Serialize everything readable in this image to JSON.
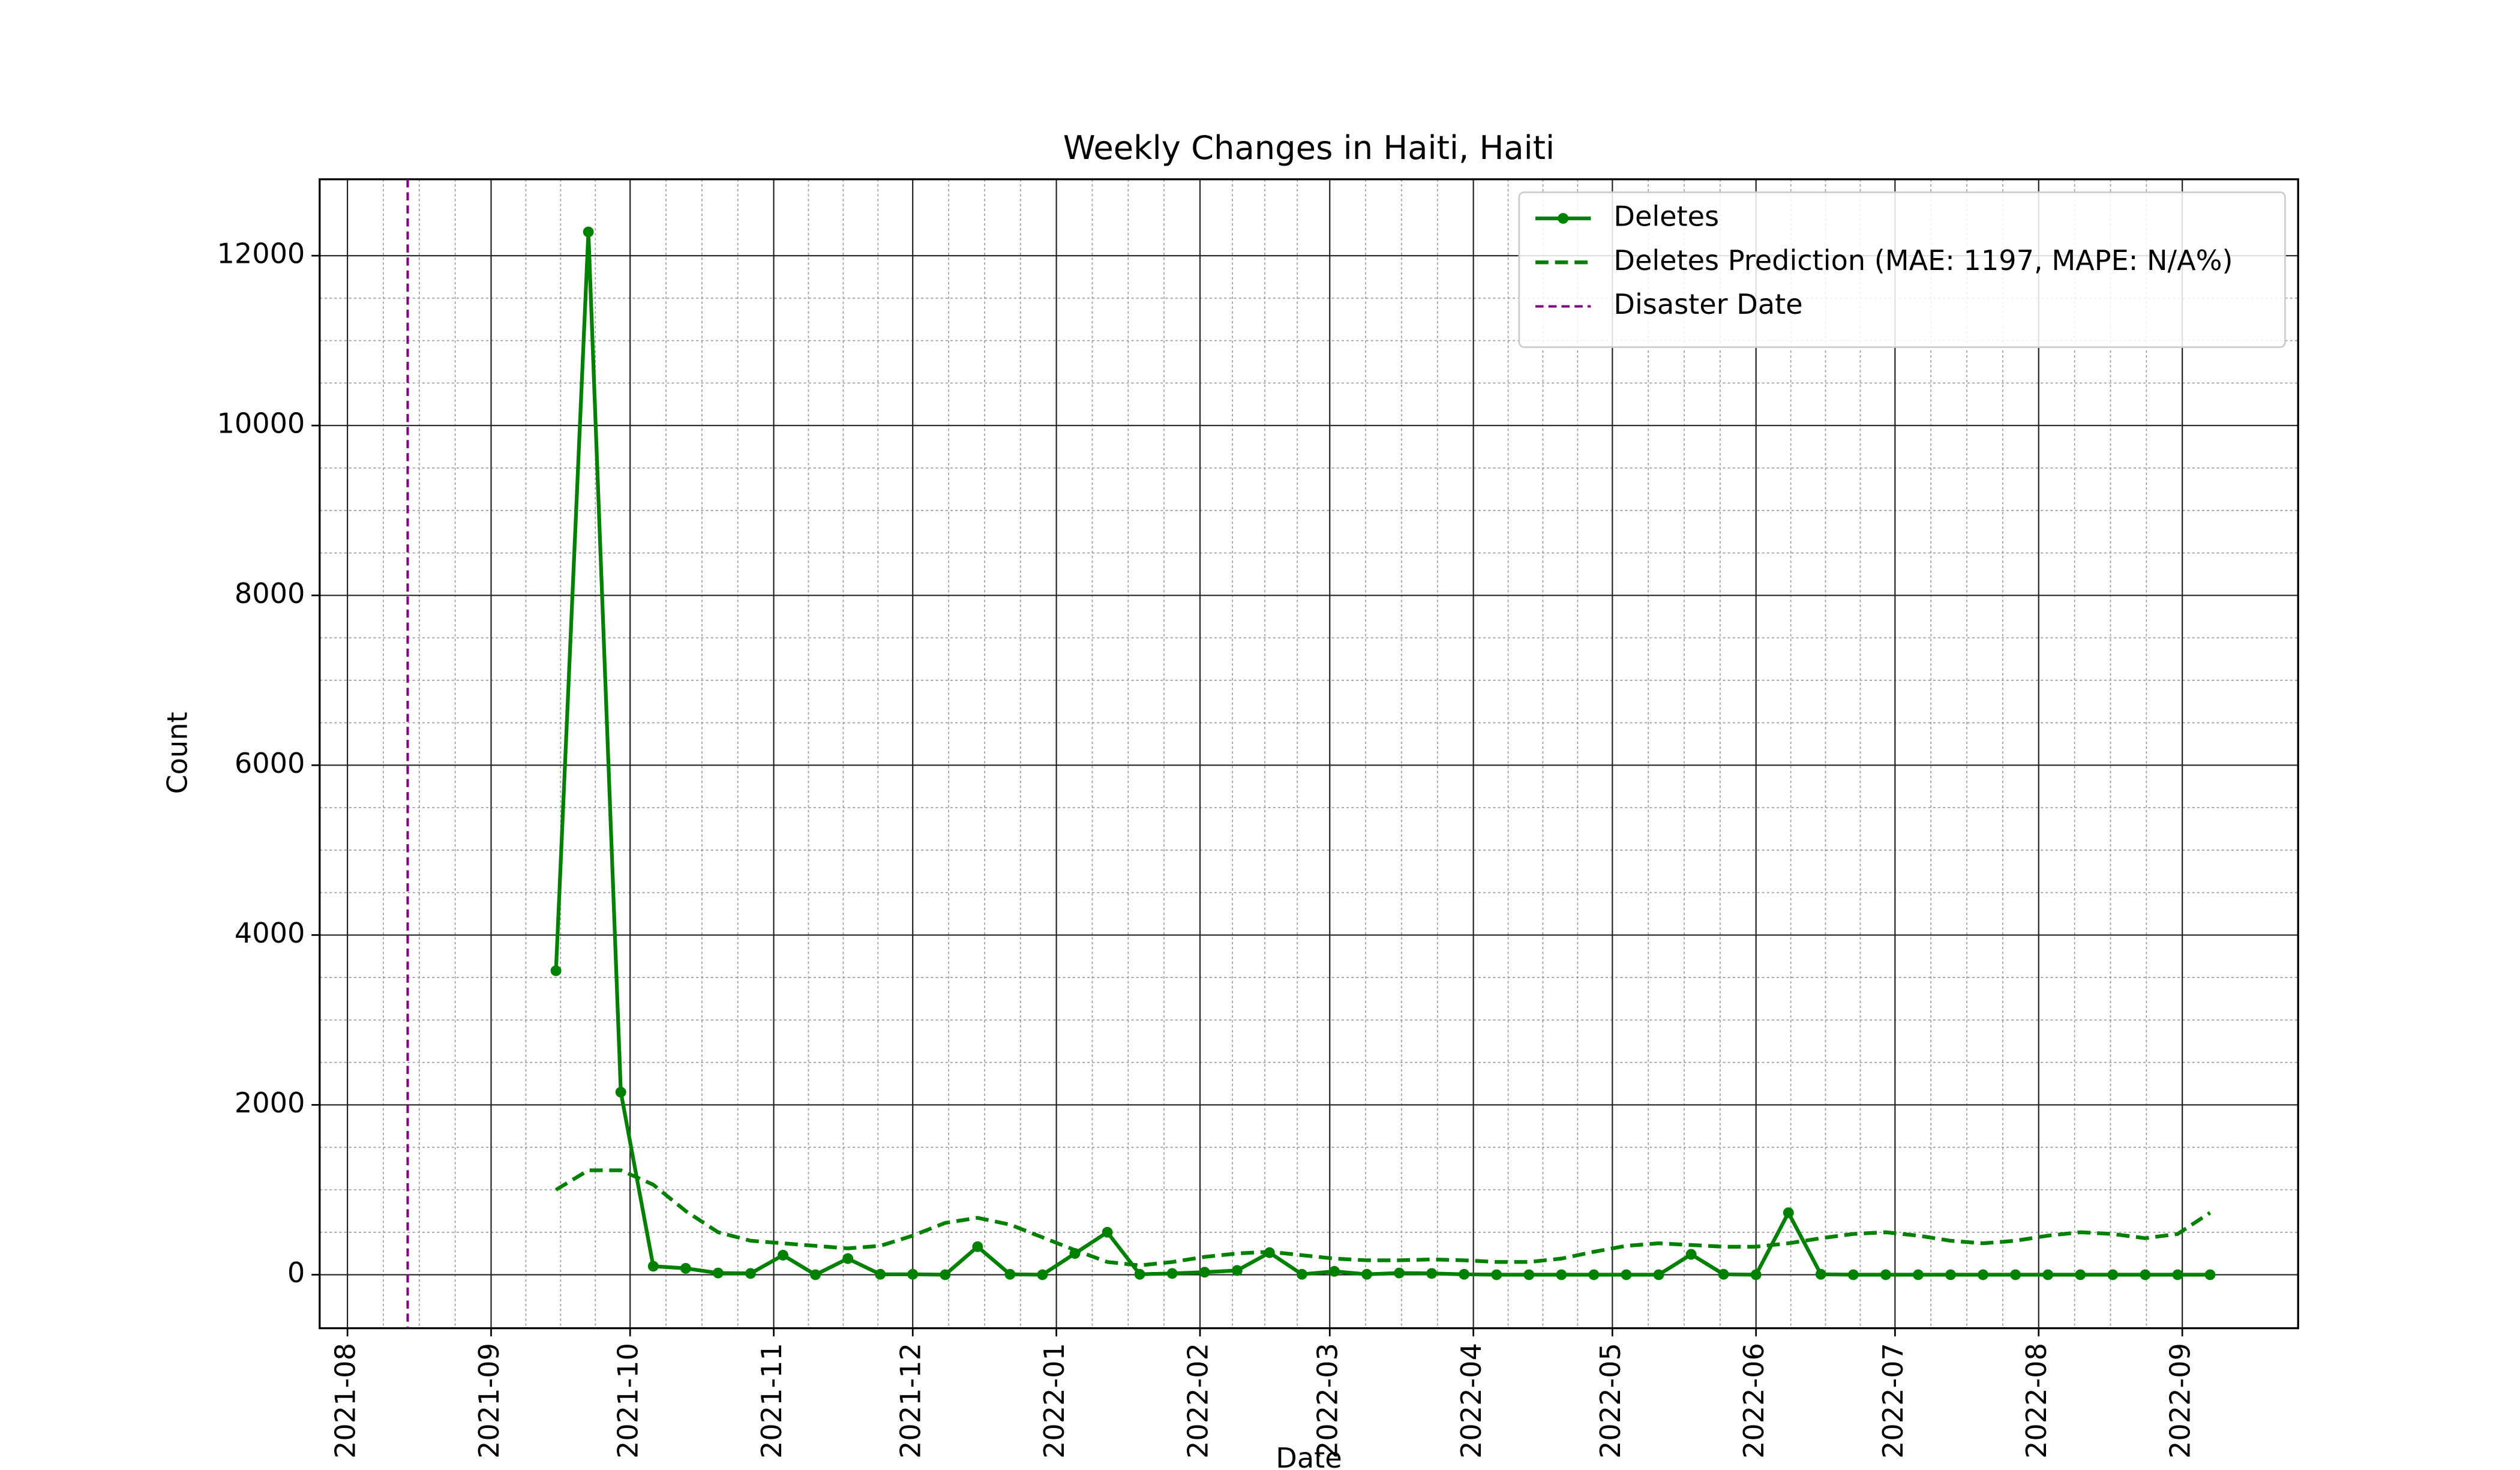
{
  "chart_data": {
    "type": "line",
    "title": "Weekly Changes in Haiti, Haiti",
    "xlabel": "Date",
    "ylabel": "Count",
    "x": [
      "2021-09-15",
      "2021-09-22",
      "2021-09-29",
      "2021-10-06",
      "2021-10-13",
      "2021-10-20",
      "2021-10-27",
      "2021-11-03",
      "2021-11-10",
      "2021-11-17",
      "2021-11-24",
      "2021-12-01",
      "2021-12-08",
      "2021-12-15",
      "2021-12-22",
      "2021-12-29",
      "2022-01-05",
      "2022-01-12",
      "2022-01-19",
      "2022-01-26",
      "2022-02-02",
      "2022-02-09",
      "2022-02-16",
      "2022-02-23",
      "2022-03-02",
      "2022-03-09",
      "2022-03-16",
      "2022-03-23",
      "2022-03-30",
      "2022-04-06",
      "2022-04-13",
      "2022-04-20",
      "2022-04-27",
      "2022-05-04",
      "2022-05-11",
      "2022-05-18",
      "2022-05-25",
      "2022-06-01",
      "2022-06-08",
      "2022-06-15",
      "2022-06-22",
      "2022-06-29",
      "2022-07-06",
      "2022-07-13",
      "2022-07-20",
      "2022-07-27",
      "2022-08-03",
      "2022-08-10",
      "2022-08-17",
      "2022-08-24",
      "2022-08-31",
      "2022-09-07"
    ],
    "series": [
      {
        "name": "Deletes",
        "color": "#008000",
        "style": "solid-marker",
        "values": [
          3580,
          12280,
          2150,
          100,
          75,
          20,
          15,
          230,
          0,
          190,
          5,
          5,
          0,
          330,
          5,
          0,
          250,
          500,
          5,
          15,
          30,
          50,
          260,
          5,
          40,
          5,
          20,
          15,
          5,
          0,
          0,
          0,
          0,
          0,
          0,
          240,
          5,
          0,
          730,
          5,
          0,
          0,
          0,
          0,
          0,
          0,
          0,
          0,
          0,
          0,
          0,
          0
        ]
      },
      {
        "name": "Deletes Prediction (MAE: 1197, MAPE: N/A%)",
        "color": "#008000",
        "style": "dashed",
        "values": [
          1000,
          1230,
          1230,
          1060,
          750,
          500,
          400,
          370,
          340,
          310,
          340,
          460,
          610,
          670,
          590,
          440,
          290,
          150,
          110,
          150,
          210,
          250,
          270,
          230,
          190,
          170,
          170,
          180,
          170,
          150,
          150,
          190,
          270,
          340,
          370,
          350,
          330,
          330,
          370,
          430,
          480,
          500,
          460,
          400,
          370,
          400,
          460,
          500,
          480,
          430,
          480,
          730
        ]
      }
    ],
    "vlines": [
      {
        "x": "2021-08-14",
        "label": "Disaster Date",
        "color": "#800080"
      }
    ],
    "xlim": [
      "2021-07-26",
      "2022-09-26"
    ],
    "xticks": [
      "2021-08",
      "2021-09",
      "2021-10",
      "2021-11",
      "2021-12",
      "2022-01",
      "2022-02",
      "2022-03",
      "2022-04",
      "2022-05",
      "2022-06",
      "2022-07",
      "2022-08",
      "2022-09"
    ],
    "ylim": [
      -630,
      12900
    ],
    "yticks": [
      0,
      2000,
      4000,
      6000,
      8000,
      10000,
      12000
    ],
    "grid": true,
    "legend": "upper right"
  }
}
